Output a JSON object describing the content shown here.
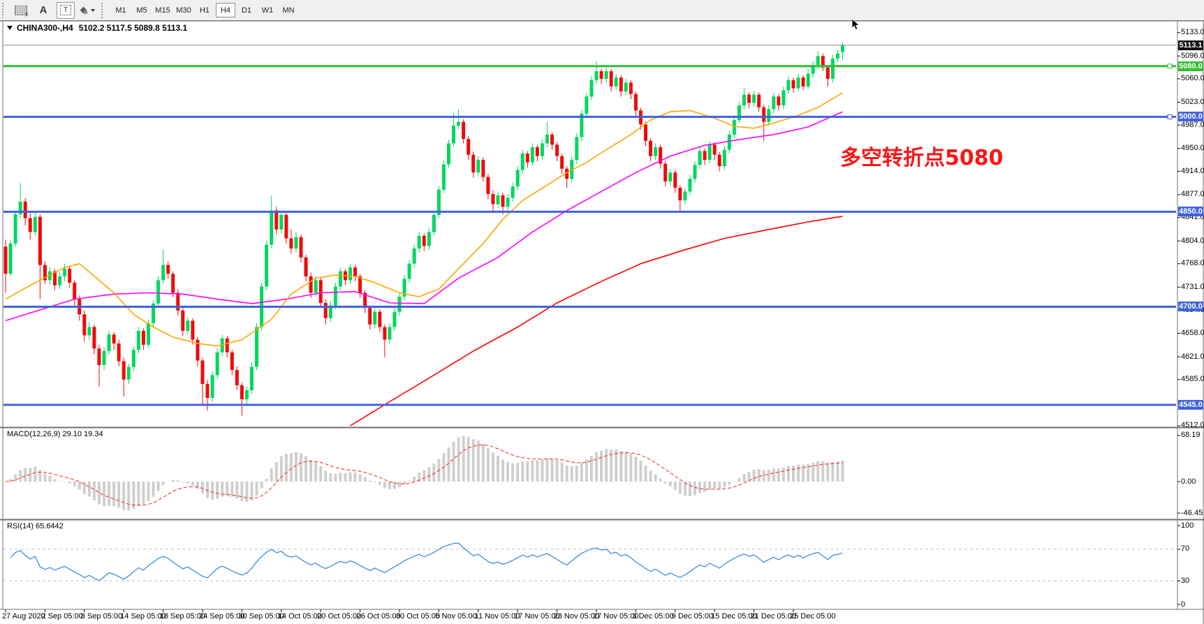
{
  "toolbar": {
    "grid_label": "F",
    "font_label": "A",
    "text_tool_label": "T",
    "timeframes": [
      "M1",
      "M5",
      "M15",
      "M30",
      "H1",
      "H4",
      "D1",
      "W1",
      "MN"
    ],
    "active_timeframe": "H4"
  },
  "chart": {
    "title": "CHINA300-,H4",
    "ohlc_text": "5102.2 5117.5 5089.8 5113.1",
    "annotation": {
      "text": "多空转折点5080",
      "color": "#fe1414"
    },
    "current_price_label": "5113.1"
  },
  "indicators": {
    "macd": {
      "text": "MACD(12,26,9) 29.10 19.34"
    },
    "rsi": {
      "text": "RSI(14) 65.6442"
    }
  },
  "chart_data": {
    "type": "candlestick",
    "symbol": "CHINA300",
    "timeframe": "H4",
    "ohlc_current": {
      "open": 5102.2,
      "high": 5117.5,
      "low": 5089.8,
      "close": 5113.1
    },
    "ylim": [
      4512,
      5136
    ],
    "y_axis_ticks": [
      5133.0,
      5096.0,
      5060.0,
      5023.0,
      4987.0,
      4950.0,
      4914.0,
      4877.0,
      4841.0,
      4804.0,
      4768.0,
      4731.0,
      4694.0,
      4658.0,
      4621.0,
      4585.0,
      4512.0
    ],
    "x_labels": [
      "27 Aug 2020",
      "2 Sep 05:00",
      "8 Sep 05:00",
      "14 Sep 05:00",
      "18 Sep 05:00",
      "24 Sep 05:00",
      "30 Sep 05:00",
      "14 Oct 05:00",
      "20 Oct 05:00",
      "26 Oct 05:00",
      "30 Oct 05:00",
      "5 Nov 05:00",
      "11 Nov 05:00",
      "17 Nov 05:00",
      "23 Nov 05:00",
      "27 Nov 05:00",
      "3 Dec 05:00",
      "9 Dec 05:00",
      "15 Dec 05:00",
      "21 Dec 05:00",
      "25 Dec 05:00"
    ],
    "colors": {
      "bull": "#00d85e",
      "bear": "#f00a0a",
      "blue_line": "#4063dd",
      "green_line": "#2fbe2f",
      "price_line": "#8b8b8b",
      "ma_fast": "#ffa500",
      "ma_mid": "#ff00ff",
      "ma_slow": "#ff0000",
      "macd_hist": "#cfcfcf",
      "macd_signal": "#ff2020",
      "rsi_line": "#3b8de0"
    },
    "hlines": [
      {
        "price": 5113.1,
        "label": "5113.1",
        "style": "price",
        "badge_bg": "#111111"
      },
      {
        "price": 5080.0,
        "label": "5080.0",
        "style": "green",
        "badge_bg": "#2fbe2f",
        "handle": true
      },
      {
        "price": 5000.0,
        "label": "5000.0",
        "style": "blue",
        "badge_bg": "#4063dd",
        "handle": true
      },
      {
        "price": 4850.0,
        "label": "4850.0",
        "style": "blue",
        "badge_bg": "#4063dd",
        "handle": false
      },
      {
        "price": 4700.0,
        "label": "4700.0",
        "style": "blue",
        "badge_bg": "#4063dd",
        "handle": false
      },
      {
        "price": 4545.0,
        "label": "4545.0",
        "style": "blue",
        "badge_bg": "#4063dd",
        "handle": false
      }
    ],
    "macd_params": [
      12,
      26,
      9
    ],
    "macd_axis": {
      "ticks": [
        {
          "v": 68.19,
          "label": "68.19"
        },
        {
          "v": 0,
          "label": "0.00"
        },
        {
          "v": -46.45,
          "label": "-46.45"
        }
      ]
    },
    "rsi_period": 14,
    "rsi_axis": {
      "ticks": [
        {
          "v": 100,
          "label": "100"
        },
        {
          "v": 70,
          "label": "70"
        },
        {
          "v": 30,
          "label": "30"
        },
        {
          "v": 0,
          "label": "0"
        }
      ],
      "levels": [
        70,
        30
      ]
    },
    "ma_fast_points": [
      [
        0,
        4712
      ],
      [
        6,
        4738
      ],
      [
        12,
        4762
      ],
      [
        15,
        4768
      ],
      [
        17,
        4755
      ],
      [
        22,
        4722
      ],
      [
        26,
        4688
      ],
      [
        30,
        4668
      ],
      [
        34,
        4652
      ],
      [
        39,
        4642
      ],
      [
        43,
        4638
      ],
      [
        48,
        4648
      ],
      [
        54,
        4680
      ],
      [
        58,
        4720
      ],
      [
        63,
        4745
      ],
      [
        67,
        4750
      ],
      [
        71,
        4748
      ],
      [
        75,
        4738
      ],
      [
        80,
        4722
      ],
      [
        84,
        4716
      ],
      [
        88,
        4728
      ],
      [
        92,
        4760
      ],
      [
        97,
        4800
      ],
      [
        101,
        4838
      ],
      [
        105,
        4868
      ],
      [
        110,
        4892
      ],
      [
        114,
        4912
      ],
      [
        118,
        4928
      ],
      [
        122,
        4948
      ],
      [
        127,
        4972
      ],
      [
        131,
        4995
      ],
      [
        135,
        5008
      ],
      [
        139,
        5010
      ],
      [
        144,
        4998
      ],
      [
        148,
        4985
      ],
      [
        152,
        4982
      ],
      [
        156,
        4990
      ],
      [
        161,
        5002
      ],
      [
        165,
        5015
      ],
      [
        170,
        5038
      ]
    ],
    "ma_mid_points": [
      [
        0,
        4678
      ],
      [
        7,
        4695
      ],
      [
        14,
        4712
      ],
      [
        22,
        4720
      ],
      [
        29,
        4722
      ],
      [
        36,
        4720
      ],
      [
        43,
        4712
      ],
      [
        50,
        4705
      ],
      [
        57,
        4712
      ],
      [
        64,
        4722
      ],
      [
        71,
        4724
      ],
      [
        78,
        4706
      ],
      [
        85,
        4705
      ],
      [
        92,
        4745
      ],
      [
        100,
        4778
      ],
      [
        107,
        4818
      ],
      [
        114,
        4852
      ],
      [
        121,
        4882
      ],
      [
        128,
        4912
      ],
      [
        135,
        4938
      ],
      [
        142,
        4955
      ],
      [
        149,
        4964
      ],
      [
        156,
        4972
      ],
      [
        163,
        4984
      ],
      [
        170,
        5008
      ]
    ],
    "ma_slow_points": [
      [
        70,
        4512
      ],
      [
        78,
        4550
      ],
      [
        87,
        4592
      ],
      [
        95,
        4630
      ],
      [
        104,
        4668
      ],
      [
        112,
        4706
      ],
      [
        121,
        4740
      ],
      [
        129,
        4768
      ],
      [
        138,
        4790
      ],
      [
        146,
        4808
      ],
      [
        155,
        4822
      ],
      [
        163,
        4834
      ],
      [
        170,
        4843
      ]
    ],
    "candles": [
      [
        4795,
        4806,
        4722,
        4752
      ],
      [
        4752,
        4806,
        4748,
        4800
      ],
      [
        4800,
        4852,
        4795,
        4846
      ],
      [
        4846,
        4895,
        4840,
        4866
      ],
      [
        4866,
        4872,
        4828,
        4840
      ],
      [
        4840,
        4848,
        4806,
        4818
      ],
      [
        4818,
        4850,
        4812,
        4842
      ],
      [
        4842,
        4846,
        4712,
        4766
      ],
      [
        4766,
        4772,
        4736,
        4742
      ],
      [
        4742,
        4762,
        4735,
        4756
      ],
      [
        4756,
        4760,
        4726,
        4734
      ],
      [
        4734,
        4754,
        4728,
        4748
      ],
      [
        4748,
        4768,
        4740,
        4760
      ],
      [
        4760,
        4764,
        4730,
        4738
      ],
      [
        4738,
        4742,
        4702,
        4712
      ],
      [
        4712,
        4718,
        4678,
        4688
      ],
      [
        4688,
        4694,
        4645,
        4655
      ],
      [
        4655,
        4676,
        4648,
        4668
      ],
      [
        4668,
        4672,
        4625,
        4634
      ],
      [
        4634,
        4640,
        4574,
        4608
      ],
      [
        4608,
        4636,
        4600,
        4630
      ],
      [
        4630,
        4662,
        4624,
        4656
      ],
      [
        4656,
        4660,
        4632,
        4642
      ],
      [
        4642,
        4648,
        4606,
        4614
      ],
      [
        4614,
        4620,
        4558,
        4585
      ],
      [
        4585,
        4610,
        4578,
        4605
      ],
      [
        4605,
        4638,
        4598,
        4632
      ],
      [
        4632,
        4668,
        4626,
        4662
      ],
      [
        4662,
        4666,
        4632,
        4640
      ],
      [
        4640,
        4680,
        4635,
        4674
      ],
      [
        4674,
        4710,
        4668,
        4705
      ],
      [
        4705,
        4748,
        4700,
        4742
      ],
      [
        4742,
        4790,
        4736,
        4766
      ],
      [
        4766,
        4772,
        4744,
        4752
      ],
      [
        4752,
        4756,
        4715,
        4722
      ],
      [
        4722,
        4728,
        4686,
        4694
      ],
      [
        4694,
        4700,
        4654,
        4662
      ],
      [
        4662,
        4684,
        4656,
        4678
      ],
      [
        4678,
        4682,
        4640,
        4648
      ],
      [
        4648,
        4652,
        4606,
        4615
      ],
      [
        4615,
        4620,
        4546,
        4578
      ],
      [
        4578,
        4584,
        4536,
        4556
      ],
      [
        4556,
        4598,
        4550,
        4592
      ],
      [
        4592,
        4634,
        4586,
        4628
      ],
      [
        4628,
        4656,
        4622,
        4650
      ],
      [
        4650,
        4654,
        4620,
        4628
      ],
      [
        4628,
        4632,
        4592,
        4600
      ],
      [
        4600,
        4606,
        4568,
        4576
      ],
      [
        4576,
        4580,
        4528,
        4554
      ],
      [
        4554,
        4574,
        4546,
        4568
      ],
      [
        4568,
        4612,
        4562,
        4605
      ],
      [
        4605,
        4674,
        4600,
        4668
      ],
      [
        4668,
        4738,
        4662,
        4732
      ],
      [
        4732,
        4804,
        4726,
        4798
      ],
      [
        4798,
        4876,
        4792,
        4852
      ],
      [
        4852,
        4858,
        4814,
        4822
      ],
      [
        4822,
        4850,
        4816,
        4845
      ],
      [
        4845,
        4850,
        4800,
        4808
      ],
      [
        4808,
        4822,
        4784,
        4792
      ],
      [
        4792,
        4818,
        4786,
        4810
      ],
      [
        4810,
        4814,
        4770,
        4778
      ],
      [
        4778,
        4782,
        4740,
        4748
      ],
      [
        4748,
        4754,
        4714,
        4722
      ],
      [
        4722,
        4748,
        4716,
        4742
      ],
      [
        4742,
        4746,
        4698,
        4706
      ],
      [
        4706,
        4712,
        4672,
        4682
      ],
      [
        4682,
        4708,
        4676,
        4702
      ],
      [
        4702,
        4738,
        4696,
        4732
      ],
      [
        4732,
        4762,
        4726,
        4756
      ],
      [
        4756,
        4760,
        4734,
        4742
      ],
      [
        4742,
        4768,
        4736,
        4762
      ],
      [
        4762,
        4766,
        4740,
        4748
      ],
      [
        4748,
        4752,
        4714,
        4722
      ],
      [
        4722,
        4726,
        4690,
        4698
      ],
      [
        4698,
        4702,
        4664,
        4672
      ],
      [
        4672,
        4698,
        4666,
        4692
      ],
      [
        4692,
        4696,
        4660,
        4668
      ],
      [
        4668,
        4672,
        4620,
        4648
      ],
      [
        4648,
        4674,
        4642,
        4668
      ],
      [
        4668,
        4698,
        4662,
        4692
      ],
      [
        4692,
        4722,
        4686,
        4716
      ],
      [
        4716,
        4750,
        4710,
        4744
      ],
      [
        4744,
        4774,
        4738,
        4768
      ],
      [
        4768,
        4798,
        4762,
        4792
      ],
      [
        4792,
        4818,
        4786,
        4812
      ],
      [
        4812,
        4816,
        4788,
        4796
      ],
      [
        4796,
        4824,
        4790,
        4818
      ],
      [
        4818,
        4851,
        4812,
        4845
      ],
      [
        4845,
        4891,
        4840,
        4885
      ],
      [
        4885,
        4931,
        4880,
        4925
      ],
      [
        4925,
        4964,
        4920,
        4958
      ],
      [
        4958,
        5006,
        4952,
        4986
      ],
      [
        4986,
        5012,
        4980,
        4992
      ],
      [
        4992,
        4996,
        4958,
        4965
      ],
      [
        4965,
        4970,
        4932,
        4940
      ],
      [
        4940,
        4945,
        4904,
        4912
      ],
      [
        4912,
        4938,
        4906,
        4932
      ],
      [
        4932,
        4936,
        4898,
        4905
      ],
      [
        4905,
        4910,
        4870,
        4878
      ],
      [
        4878,
        4884,
        4848,
        4862
      ],
      [
        4862,
        4882,
        4856,
        4876
      ],
      [
        4876,
        4880,
        4846,
        4858
      ],
      [
        4858,
        4878,
        4852,
        4872
      ],
      [
        4872,
        4896,
        4866,
        4890
      ],
      [
        4890,
        4922,
        4884,
        4916
      ],
      [
        4916,
        4948,
        4910,
        4942
      ],
      [
        4942,
        4946,
        4920,
        4928
      ],
      [
        4928,
        4958,
        4922,
        4952
      ],
      [
        4952,
        4956,
        4930,
        4938
      ],
      [
        4938,
        4964,
        4932,
        4958
      ],
      [
        4958,
        4992,
        4952,
        4972
      ],
      [
        4972,
        4976,
        4948,
        4956
      ],
      [
        4956,
        4960,
        4930,
        4938
      ],
      [
        4938,
        4942,
        4910,
        4918
      ],
      [
        4918,
        4922,
        4888,
        4902
      ],
      [
        4902,
        4938,
        4896,
        4932
      ],
      [
        4932,
        4974,
        4926,
        4968
      ],
      [
        4968,
        5011,
        4962,
        5005
      ],
      [
        5005,
        5038,
        5000,
        5032
      ],
      [
        5032,
        5064,
        5026,
        5058
      ],
      [
        5058,
        5088,
        5052,
        5072
      ],
      [
        5072,
        5076,
        5052,
        5060
      ],
      [
        5060,
        5078,
        5054,
        5072
      ],
      [
        5072,
        5076,
        5040,
        5048
      ],
      [
        5048,
        5068,
        5042,
        5062
      ],
      [
        5062,
        5066,
        5032,
        5040
      ],
      [
        5040,
        5060,
        5034,
        5054
      ],
      [
        5054,
        5058,
        5028,
        5036
      ],
      [
        5036,
        5040,
        5002,
        5010
      ],
      [
        5010,
        5014,
        4980,
        4988
      ],
      [
        4988,
        4992,
        4954,
        4962
      ],
      [
        4962,
        4966,
        4930,
        4938
      ],
      [
        4938,
        4958,
        4932,
        4952
      ],
      [
        4952,
        4956,
        4918,
        4926
      ],
      [
        4926,
        4930,
        4890,
        4898
      ],
      [
        4898,
        4918,
        4892,
        4912
      ],
      [
        4912,
        4916,
        4880,
        4888
      ],
      [
        4888,
        4892,
        4850,
        4868
      ],
      [
        4868,
        4888,
        4862,
        4882
      ],
      [
        4882,
        4908,
        4876,
        4902
      ],
      [
        4902,
        4930,
        4896,
        4924
      ],
      [
        4924,
        4952,
        4918,
        4946
      ],
      [
        4946,
        4950,
        4924,
        4932
      ],
      [
        4932,
        4962,
        4926,
        4956
      ],
      [
        4956,
        4960,
        4932,
        4940
      ],
      [
        4940,
        4944,
        4914,
        4922
      ],
      [
        4922,
        4954,
        4916,
        4948
      ],
      [
        4948,
        4978,
        4942,
        4972
      ],
      [
        4972,
        5001,
        4966,
        4995
      ],
      [
        4995,
        5024,
        4990,
        5018
      ],
      [
        5018,
        5046,
        5012,
        5035
      ],
      [
        5035,
        5039,
        5014,
        5022
      ],
      [
        5022,
        5041,
        5016,
        5035
      ],
      [
        5035,
        5039,
        5008,
        5015
      ],
      [
        5015,
        5019,
        4962,
        4992
      ],
      [
        4992,
        5018,
        4986,
        5012
      ],
      [
        5012,
        5038,
        5006,
        5032
      ],
      [
        5032,
        5036,
        5010,
        5018
      ],
      [
        5018,
        5048,
        5012,
        5042
      ],
      [
        5042,
        5064,
        5036,
        5058
      ],
      [
        5058,
        5062,
        5038,
        5045
      ],
      [
        5045,
        5068,
        5040,
        5062
      ],
      [
        5062,
        5066,
        5042,
        5048
      ],
      [
        5048,
        5074,
        5044,
        5068
      ],
      [
        5068,
        5088,
        5062,
        5082
      ],
      [
        5082,
        5104,
        5076,
        5096
      ],
      [
        5096,
        5100,
        5072,
        5078
      ],
      [
        5078,
        5082,
        5048,
        5060
      ],
      [
        5060,
        5098,
        5054,
        5092
      ],
      [
        5092,
        5106,
        5086,
        5100
      ],
      [
        5102.2,
        5117.5,
        5089.8,
        5113.1
      ]
    ]
  }
}
